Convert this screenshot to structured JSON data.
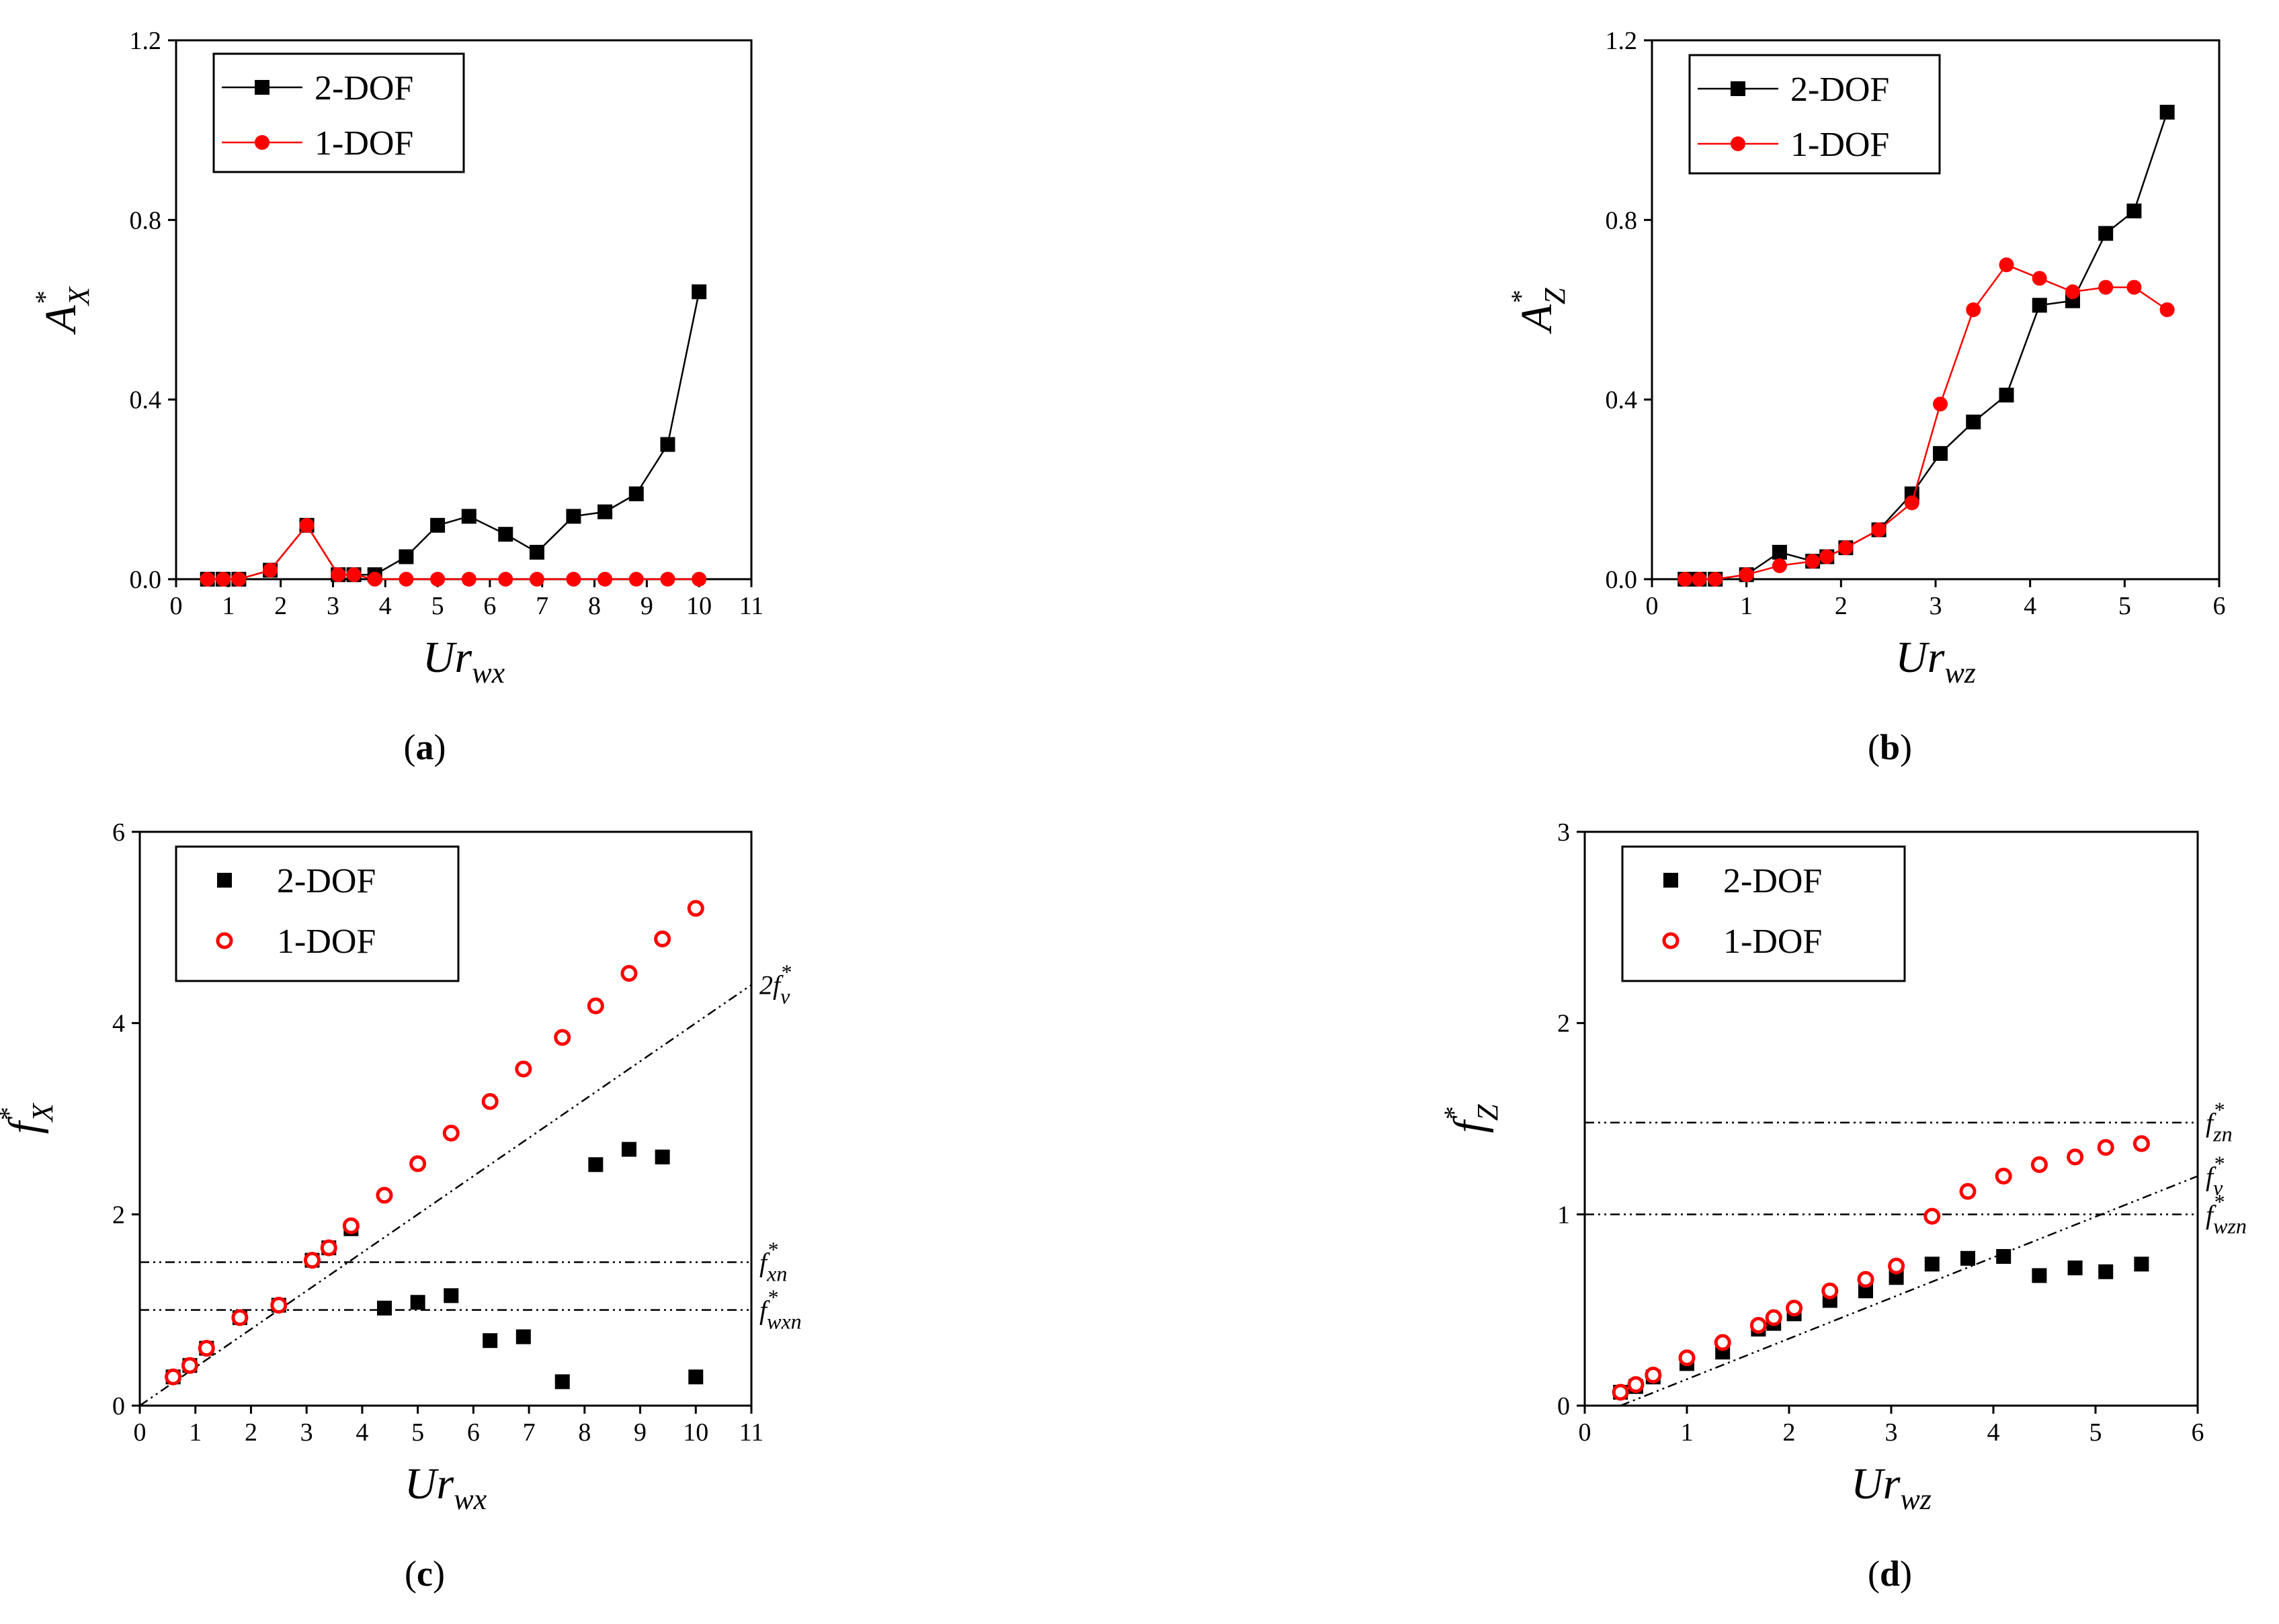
{
  "chart_data": [
    {
      "id": "a",
      "type": "line",
      "panel_label": "a",
      "xlabel": {
        "main": "Ur",
        "sub": "wx"
      },
      "ylabel": {
        "main": "A",
        "sub": "X",
        "sup": "*"
      },
      "xlim": [
        0,
        11
      ],
      "ylim": [
        0,
        1.2
      ],
      "xticks": [
        "0",
        "1",
        "2",
        "3",
        "4",
        "5",
        "6",
        "7",
        "8",
        "9",
        "10",
        "11"
      ],
      "yticks": [
        "0.0",
        "0.4",
        "0.8",
        "1.2"
      ],
      "legend": {
        "position": "top-left"
      },
      "series": [
        {
          "name": "2-DOF",
          "color": "#000000",
          "marker": "square",
          "lines": true,
          "x": [
            0.6,
            0.9,
            1.2,
            1.8,
            2.5,
            3.1,
            3.4,
            3.8,
            4.4,
            5.0,
            5.6,
            6.3,
            6.9,
            7.6,
            8.2,
            8.8,
            9.4,
            10.0
          ],
          "y": [
            0.0,
            0.0,
            0.0,
            0.02,
            0.12,
            0.01,
            0.01,
            0.01,
            0.05,
            0.12,
            0.14,
            0.1,
            0.06,
            0.14,
            0.15,
            0.19,
            0.3,
            0.64
          ]
        },
        {
          "name": "1-DOF",
          "color": "#ff0000",
          "marker": "circle",
          "lines": true,
          "x": [
            0.6,
            0.9,
            1.2,
            1.8,
            2.5,
            3.1,
            3.4,
            3.8,
            4.4,
            5.0,
            5.6,
            6.3,
            6.9,
            7.6,
            8.2,
            8.8,
            9.4,
            10.0
          ],
          "y": [
            0.0,
            0.0,
            0.0,
            0.02,
            0.12,
            0.01,
            0.01,
            0.0,
            0.0,
            0.0,
            0.0,
            0.0,
            0.0,
            0.0,
            0.0,
            0.0,
            0.0,
            0.0
          ]
        }
      ]
    },
    {
      "id": "b",
      "type": "line",
      "panel_label": "b",
      "xlabel": {
        "main": "Ur",
        "sub": "wz"
      },
      "ylabel": {
        "main": "A",
        "sub": "Z",
        "sup": "*"
      },
      "xlim": [
        0,
        6
      ],
      "ylim": [
        0,
        1.2
      ],
      "xticks": [
        "0",
        "1",
        "2",
        "3",
        "4",
        "5",
        "6"
      ],
      "yticks": [
        "0.0",
        "0.4",
        "0.8",
        "1.2"
      ],
      "legend": {
        "position": "top-left"
      },
      "series": [
        {
          "name": "2-DOF",
          "color": "#000000",
          "marker": "square",
          "lines": true,
          "x": [
            0.35,
            0.5,
            0.67,
            1.0,
            1.35,
            1.7,
            1.85,
            2.05,
            2.4,
            2.75,
            3.05,
            3.4,
            3.75,
            4.1,
            4.45,
            4.8,
            5.1,
            5.45
          ],
          "y": [
            0.0,
            0.0,
            0.0,
            0.01,
            0.06,
            0.04,
            0.05,
            0.07,
            0.11,
            0.19,
            0.28,
            0.35,
            0.41,
            0.61,
            0.62,
            0.77,
            0.82,
            1.04
          ]
        },
        {
          "name": "1-DOF",
          "color": "#ff0000",
          "marker": "circle",
          "lines": true,
          "x": [
            0.35,
            0.5,
            0.67,
            1.0,
            1.35,
            1.7,
            1.85,
            2.05,
            2.4,
            2.75,
            3.05,
            3.4,
            3.75,
            4.1,
            4.45,
            4.8,
            5.1,
            5.45
          ],
          "y": [
            0.0,
            0.0,
            0.0,
            0.01,
            0.03,
            0.04,
            0.05,
            0.07,
            0.11,
            0.17,
            0.39,
            0.6,
            0.7,
            0.67,
            0.64,
            0.65,
            0.65,
            0.6
          ]
        }
      ]
    },
    {
      "id": "c",
      "type": "scatter",
      "panel_label": "c",
      "xlabel": {
        "main": "Ur",
        "sub": "wx"
      },
      "ylabel": {
        "main": "f",
        "sub": "X",
        "sup": "*"
      },
      "xlim": [
        0,
        11
      ],
      "ylim": [
        0,
        6
      ],
      "xticks": [
        "0",
        "1",
        "2",
        "3",
        "4",
        "5",
        "6",
        "7",
        "8",
        "9",
        "10",
        "11"
      ],
      "yticks": [
        "0",
        "2",
        "4",
        "6"
      ],
      "legend": {
        "position": "top-left"
      },
      "reference_lines": [
        {
          "kind": "diagonal",
          "label": "2f",
          "label_sub": "v",
          "x": [
            0,
            11
          ],
          "y": [
            0,
            4.4
          ]
        },
        {
          "kind": "horizontal",
          "label": "f",
          "label_sub": "xn",
          "y": 1.5
        },
        {
          "kind": "horizontal",
          "label": "f",
          "label_sub": "wxn",
          "y": 1.0
        }
      ],
      "series": [
        {
          "name": "2-DOF",
          "color": "#000000",
          "marker": "square",
          "lines": false,
          "x": [
            0.6,
            0.9,
            1.2,
            1.8,
            2.5,
            3.1,
            3.4,
            3.8,
            4.4,
            5.0,
            5.6,
            6.3,
            6.9,
            7.6,
            8.2,
            8.8,
            9.4,
            10.0
          ],
          "y": [
            0.3,
            0.42,
            0.6,
            0.92,
            1.05,
            1.52,
            1.65,
            1.85,
            1.02,
            1.08,
            1.15,
            0.68,
            0.72,
            0.25,
            2.52,
            2.68,
            2.6,
            0.3
          ]
        },
        {
          "name": "1-DOF",
          "color": "#ff0000",
          "marker": "ring",
          "lines": false,
          "x": [
            0.6,
            0.9,
            1.2,
            1.8,
            2.5,
            3.1,
            3.4,
            3.8,
            4.4,
            5.0,
            5.6,
            6.3,
            6.9,
            7.6,
            8.2,
            8.8,
            9.4,
            10.0
          ],
          "y": [
            0.3,
            0.42,
            0.6,
            0.92,
            1.05,
            1.52,
            1.65,
            1.88,
            2.2,
            2.53,
            2.85,
            3.18,
            3.52,
            3.85,
            4.18,
            4.52,
            4.88,
            5.2
          ]
        }
      ]
    },
    {
      "id": "d",
      "type": "scatter",
      "panel_label": "d",
      "xlabel": {
        "main": "Ur",
        "sub": "wz"
      },
      "ylabel": {
        "main": "f",
        "sub": "Z",
        "sup": "*"
      },
      "xlim": [
        0,
        6
      ],
      "ylim": [
        0,
        3
      ],
      "xticks": [
        "0",
        "1",
        "2",
        "3",
        "4",
        "5",
        "6"
      ],
      "yticks": [
        "0",
        "1",
        "2",
        "3"
      ],
      "legend": {
        "position": "top-left"
      },
      "reference_lines": [
        {
          "kind": "horizontal",
          "label": "f",
          "label_sub": "zn",
          "y": 1.48
        },
        {
          "kind": "diagonal",
          "label": "f",
          "label_sub": "v",
          "x": [
            0.35,
            6
          ],
          "y": [
            0,
            1.2
          ]
        },
        {
          "kind": "horizontal",
          "label": "f",
          "label_sub": "wzn",
          "y": 1.0
        }
      ],
      "series": [
        {
          "name": "2-DOF",
          "color": "#000000",
          "marker": "square",
          "lines": false,
          "x": [
            0.35,
            0.5,
            0.67,
            1.0,
            1.35,
            1.7,
            1.85,
            2.05,
            2.4,
            2.75,
            3.05,
            3.4,
            3.75,
            4.1,
            4.45,
            4.8,
            5.1,
            5.45
          ],
          "y": [
            0.07,
            0.1,
            0.15,
            0.22,
            0.28,
            0.4,
            0.43,
            0.48,
            0.55,
            0.6,
            0.67,
            0.74,
            0.77,
            0.78,
            0.68,
            0.72,
            0.7,
            0.74
          ]
        },
        {
          "name": "1-DOF",
          "color": "#ff0000",
          "marker": "ring",
          "lines": false,
          "x": [
            0.35,
            0.5,
            0.67,
            1.0,
            1.35,
            1.7,
            1.85,
            2.05,
            2.4,
            2.75,
            3.05,
            3.4,
            3.75,
            4.1,
            4.45,
            4.8,
            5.1,
            5.45
          ],
          "y": [
            0.07,
            0.11,
            0.16,
            0.25,
            0.33,
            0.42,
            0.46,
            0.51,
            0.6,
            0.66,
            0.73,
            0.99,
            1.12,
            1.2,
            1.26,
            1.3,
            1.35,
            1.37
          ]
        }
      ]
    }
  ]
}
